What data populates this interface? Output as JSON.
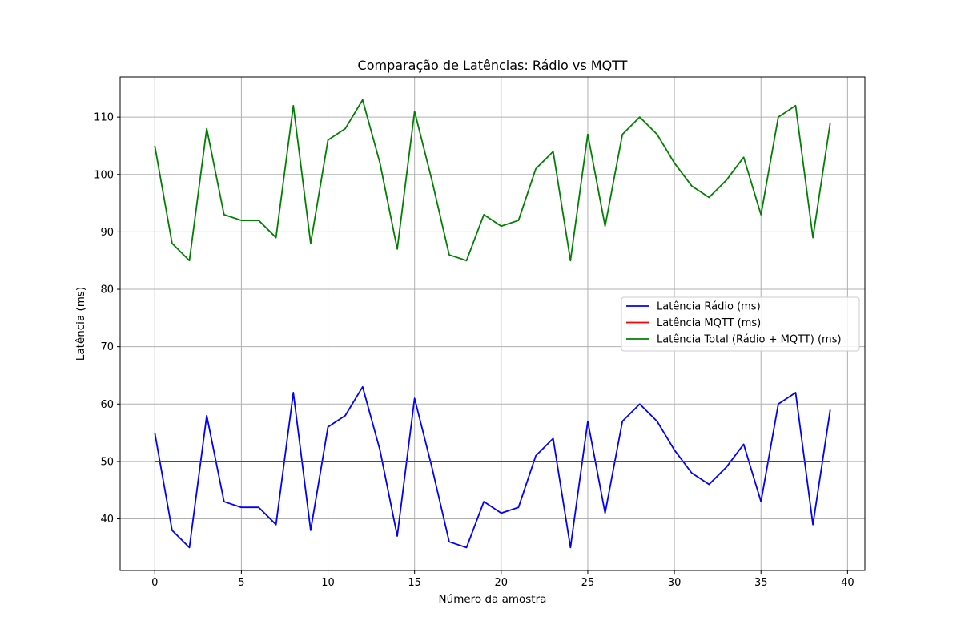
{
  "chart_data": {
    "type": "line",
    "title": "Comparação de Latências: Rádio vs MQTT",
    "xlabel": "Número da amostra",
    "ylabel": "Latência (ms)",
    "xlim": [
      -2,
      41
    ],
    "ylim": [
      31,
      117
    ],
    "xticks": [
      0,
      5,
      10,
      15,
      20,
      25,
      30,
      35,
      40
    ],
    "yticks": [
      40,
      50,
      60,
      70,
      80,
      90,
      100,
      110
    ],
    "grid": true,
    "legend_position": "center-right",
    "x": [
      0,
      1,
      2,
      3,
      4,
      5,
      6,
      7,
      8,
      9,
      10,
      11,
      12,
      13,
      14,
      15,
      16,
      17,
      18,
      19,
      20,
      21,
      22,
      23,
      24,
      25,
      26,
      27,
      28,
      29,
      30,
      31,
      32,
      33,
      34,
      35,
      36,
      37,
      38,
      39
    ],
    "series": [
      {
        "name": "Latência Rádio (ms)",
        "color": "#0000ff",
        "values": [
          55,
          38,
          35,
          58,
          43,
          42,
          42,
          39,
          62,
          38,
          56,
          58,
          63,
          52,
          37,
          61,
          49,
          36,
          35,
          43,
          41,
          42,
          51,
          54,
          35,
          57,
          41,
          57,
          60,
          57,
          52,
          48,
          46,
          49,
          53,
          43,
          60,
          62,
          39,
          59
        ]
      },
      {
        "name": "Latência MQTT (ms)",
        "color": "#ff0000",
        "values": [
          50,
          50,
          50,
          50,
          50,
          50,
          50,
          50,
          50,
          50,
          50,
          50,
          50,
          50,
          50,
          50,
          50,
          50,
          50,
          50,
          50,
          50,
          50,
          50,
          50,
          50,
          50,
          50,
          50,
          50,
          50,
          50,
          50,
          50,
          50,
          50,
          50,
          50,
          50,
          50
        ]
      },
      {
        "name": "Latência Total (Rádio + MQTT) (ms)",
        "color": "#008000",
        "values": [
          105,
          88,
          85,
          108,
          93,
          92,
          92,
          89,
          112,
          88,
          106,
          108,
          113,
          102,
          87,
          111,
          99,
          86,
          85,
          93,
          91,
          92,
          101,
          104,
          85,
          107,
          91,
          107,
          110,
          107,
          102,
          98,
          96,
          99,
          103,
          93,
          110,
          112,
          89,
          109
        ]
      }
    ]
  }
}
